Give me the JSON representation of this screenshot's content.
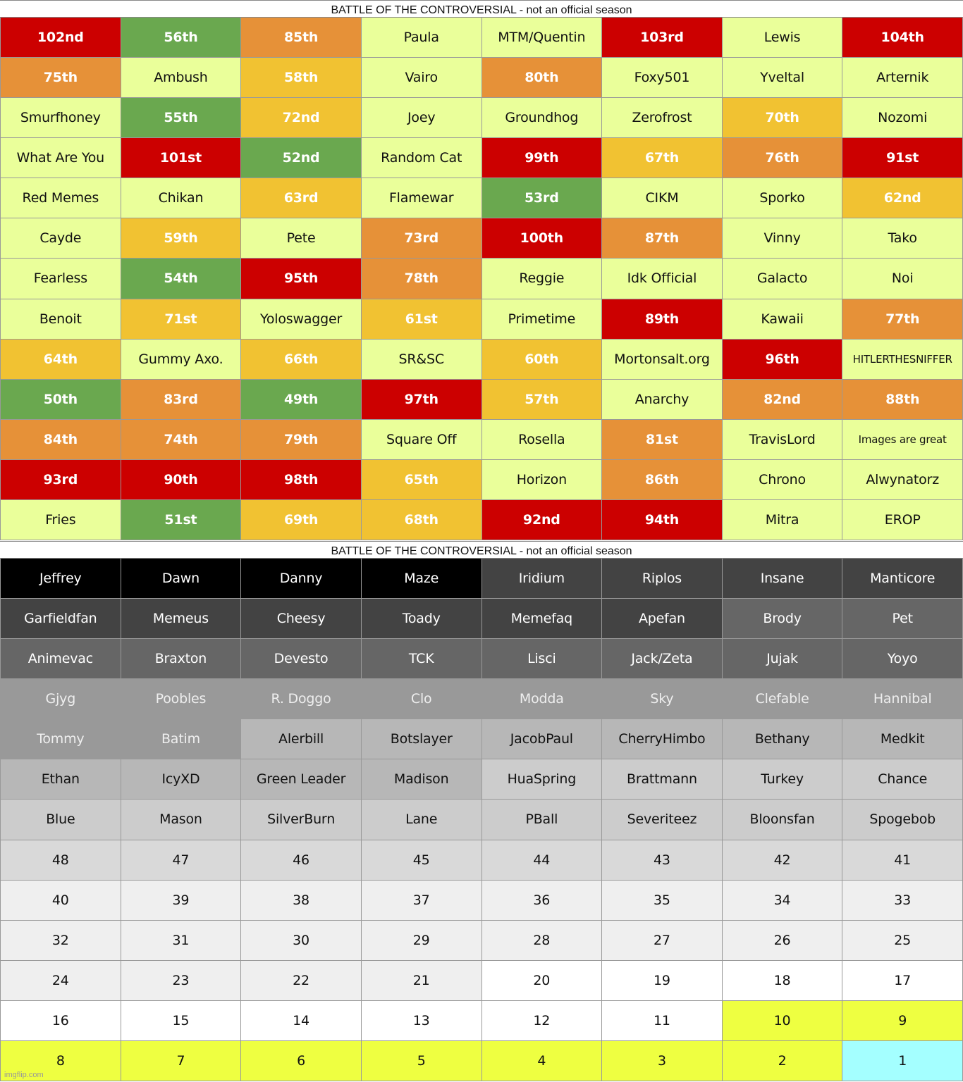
{
  "table1": {
    "title": "BATTLE OF THE CONTROVERSIAL - not an official season",
    "rows": [
      [
        "102nd",
        "56th",
        "85th",
        "Paula",
        "MTM/Quentin",
        "103rd",
        "Lewis",
        "104th"
      ],
      [
        "75th",
        "Ambush",
        "58th",
        "Vairo",
        "80th",
        "Foxy501",
        "Yveltal",
        "Arternik"
      ],
      [
        "Smurfhoney",
        "55th",
        "72nd",
        "Joey",
        "Groundhog",
        "Zerofrost",
        "70th",
        "Nozomi"
      ],
      [
        "What Are You",
        "101st",
        "52nd",
        "Random Cat",
        "99th",
        "67th",
        "76th",
        "91st"
      ],
      [
        "Red Memes",
        "Chikan",
        "63rd",
        "Flamewar",
        "53rd",
        "CIKM",
        "Sporko",
        "62nd"
      ],
      [
        "Cayde",
        "59th",
        "Pete",
        "73rd",
        "100th",
        "87th",
        "Vinny",
        "Tako"
      ],
      [
        "Fearless",
        "54th",
        "95th",
        "78th",
        "Reggie",
        "Idk Official",
        "Galacto",
        "Noi"
      ],
      [
        "Benoit",
        "71st",
        "Yoloswagger",
        "61st",
        "Primetime",
        "89th",
        "Kawaii",
        "77th"
      ],
      [
        "64th",
        "Gummy Axo.",
        "66th",
        "SR&SC",
        "60th",
        "Mortonsalt.org",
        "96th",
        "HITLERTHESNIFFER"
      ],
      [
        "50th",
        "83rd",
        "49th",
        "97th",
        "57th",
        "Anarchy",
        "82nd",
        "88th"
      ],
      [
        "84th",
        "74th",
        "79th",
        "Square Off",
        "Rosella",
        "81st",
        "TravisLord",
        "Images are great"
      ],
      [
        "93rd",
        "90th",
        "98th",
        "65th",
        "Horizon",
        "86th",
        "Chrono",
        "Alwynatorz"
      ],
      [
        "Fries",
        "51st",
        "69th",
        "68th",
        "92nd",
        "94th",
        "Mitra",
        "EROP"
      ]
    ],
    "fills": [
      [
        "#cc0000",
        "#6aa84f",
        "#e69138",
        "#eaff9a",
        "#eaff9a",
        "#cc0000",
        "#eaff9a",
        "#cc0000"
      ],
      [
        "#e69138",
        "#eaff9a",
        "#f1c232",
        "#eaff9a",
        "#e69138",
        "#eaff9a",
        "#eaff9a",
        "#eaff9a"
      ],
      [
        "#eaff9a",
        "#6aa84f",
        "#f1c232",
        "#eaff9a",
        "#eaff9a",
        "#eaff9a",
        "#f1c232",
        "#eaff9a"
      ],
      [
        "#eaff9a",
        "#cc0000",
        "#6aa84f",
        "#eaff9a",
        "#cc0000",
        "#f1c232",
        "#e69138",
        "#cc0000"
      ],
      [
        "#eaff9a",
        "#eaff9a",
        "#f1c232",
        "#eaff9a",
        "#6aa84f",
        "#eaff9a",
        "#eaff9a",
        "#f1c232"
      ],
      [
        "#eaff9a",
        "#f1c232",
        "#eaff9a",
        "#e69138",
        "#cc0000",
        "#e69138",
        "#eaff9a",
        "#eaff9a"
      ],
      [
        "#eaff9a",
        "#6aa84f",
        "#cc0000",
        "#e69138",
        "#eaff9a",
        "#eaff9a",
        "#eaff9a",
        "#eaff9a"
      ],
      [
        "#eaff9a",
        "#f1c232",
        "#eaff9a",
        "#f1c232",
        "#eaff9a",
        "#cc0000",
        "#eaff9a",
        "#e69138"
      ],
      [
        "#f1c232",
        "#eaff9a",
        "#f1c232",
        "#eaff9a",
        "#f1c232",
        "#eaff9a",
        "#cc0000",
        "#eaff9a"
      ],
      [
        "#6aa84f",
        "#e69138",
        "#6aa84f",
        "#cc0000",
        "#f1c232",
        "#eaff9a",
        "#e69138",
        "#e69138"
      ],
      [
        "#e69138",
        "#e69138",
        "#e69138",
        "#eaff9a",
        "#eaff9a",
        "#e69138",
        "#eaff9a",
        "#eaff9a"
      ],
      [
        "#cc0000",
        "#cc0000",
        "#cc0000",
        "#f1c232",
        "#eaff9a",
        "#e69138",
        "#eaff9a",
        "#eaff9a"
      ],
      [
        "#eaff9a",
        "#6aa84f",
        "#f1c232",
        "#f1c232",
        "#cc0000",
        "#cc0000",
        "#eaff9a",
        "#eaff9a"
      ]
    ]
  },
  "table2": {
    "title": "BATTLE OF THE CONTROVERSIAL - not an official season",
    "rows": [
      [
        "Jeffrey",
        "Dawn",
        "Danny",
        "Maze",
        "Iridium",
        "Riplos",
        "Insane",
        "Manticore"
      ],
      [
        "Garfieldfan",
        "Memeus",
        "Cheesy",
        "Toady",
        "Memefaq",
        "Apefan",
        "Brody",
        "Pet"
      ],
      [
        "Animevac",
        "Braxton",
        "Devesto",
        "TCK",
        "Lisci",
        "Jack/Zeta",
        "Jujak",
        "Yoyo"
      ],
      [
        "Gjyg",
        "Poobles",
        "R. Doggo",
        "Clo",
        "Modda",
        "Sky",
        "Clefable",
        "Hannibal"
      ],
      [
        "Tommy",
        "Batim",
        "Alerbill",
        "Botslayer",
        "JacobPaul",
        "CherryHimbo",
        "Bethany",
        "Medkit"
      ],
      [
        "Ethan",
        "IcyXD",
        "Green Leader",
        "Madison",
        "HuaSpring",
        "Brattmann",
        "Turkey",
        "Chance"
      ],
      [
        "Blue",
        "Mason",
        "SilverBurn",
        "Lane",
        "PBall",
        "Severiteez",
        "Bloonsfan",
        "Spogebob"
      ],
      [
        48,
        47,
        46,
        45,
        44,
        43,
        42,
        41
      ],
      [
        40,
        39,
        38,
        37,
        36,
        35,
        34,
        33
      ],
      [
        32,
        31,
        30,
        29,
        28,
        27,
        26,
        25
      ],
      [
        24,
        23,
        22,
        21,
        20,
        19,
        18,
        17
      ],
      [
        16,
        15,
        14,
        13,
        12,
        11,
        10,
        9
      ],
      [
        8,
        7,
        6,
        5,
        4,
        3,
        2,
        1
      ]
    ],
    "fills": [
      [
        "#000000",
        "#000000",
        "#000000",
        "#000000",
        "#434343",
        "#434343",
        "#434343",
        "#434343"
      ],
      [
        "#434343",
        "#434343",
        "#434343",
        "#434343",
        "#434343",
        "#434343",
        "#666666",
        "#666666"
      ],
      [
        "#666666",
        "#666666",
        "#666666",
        "#666666",
        "#666666",
        "#666666",
        "#666666",
        "#666666"
      ],
      [
        "#999999",
        "#999999",
        "#999999",
        "#999999",
        "#999999",
        "#999999",
        "#999999",
        "#999999"
      ],
      [
        "#999999",
        "#999999",
        "#b7b7b7",
        "#b7b7b7",
        "#b7b7b7",
        "#b7b7b7",
        "#b7b7b7",
        "#b7b7b7"
      ],
      [
        "#b7b7b7",
        "#b7b7b7",
        "#b7b7b7",
        "#b7b7b7",
        "#cccccc",
        "#cccccc",
        "#cccccc",
        "#cccccc"
      ],
      [
        "#cccccc",
        "#cccccc",
        "#cccccc",
        "#cccccc",
        "#cccccc",
        "#cccccc",
        "#cccccc",
        "#cccccc"
      ],
      [
        "#d9d9d9",
        "#d9d9d9",
        "#d9d9d9",
        "#d9d9d9",
        "#d9d9d9",
        "#d9d9d9",
        "#d9d9d9",
        "#d9d9d9"
      ],
      [
        "#efefef",
        "#efefef",
        "#efefef",
        "#efefef",
        "#efefef",
        "#efefef",
        "#efefef",
        "#efefef"
      ],
      [
        "#efefef",
        "#efefef",
        "#efefef",
        "#efefef",
        "#efefef",
        "#efefef",
        "#efefef",
        "#efefef"
      ],
      [
        "#efefef",
        "#efefef",
        "#efefef",
        "#efefef",
        "#ffffff",
        "#ffffff",
        "#ffffff",
        "#ffffff"
      ],
      [
        "#ffffff",
        "#ffffff",
        "#ffffff",
        "#ffffff",
        "#ffffff",
        "#ffffff",
        "#eeff41",
        "#eeff41"
      ],
      [
        "#eeff41",
        "#eeff41",
        "#eeff41",
        "#eeff41",
        "#eeff41",
        "#eeff41",
        "#eeff41",
        "#a4ffff"
      ]
    ]
  },
  "watermark": "imgflip.com"
}
